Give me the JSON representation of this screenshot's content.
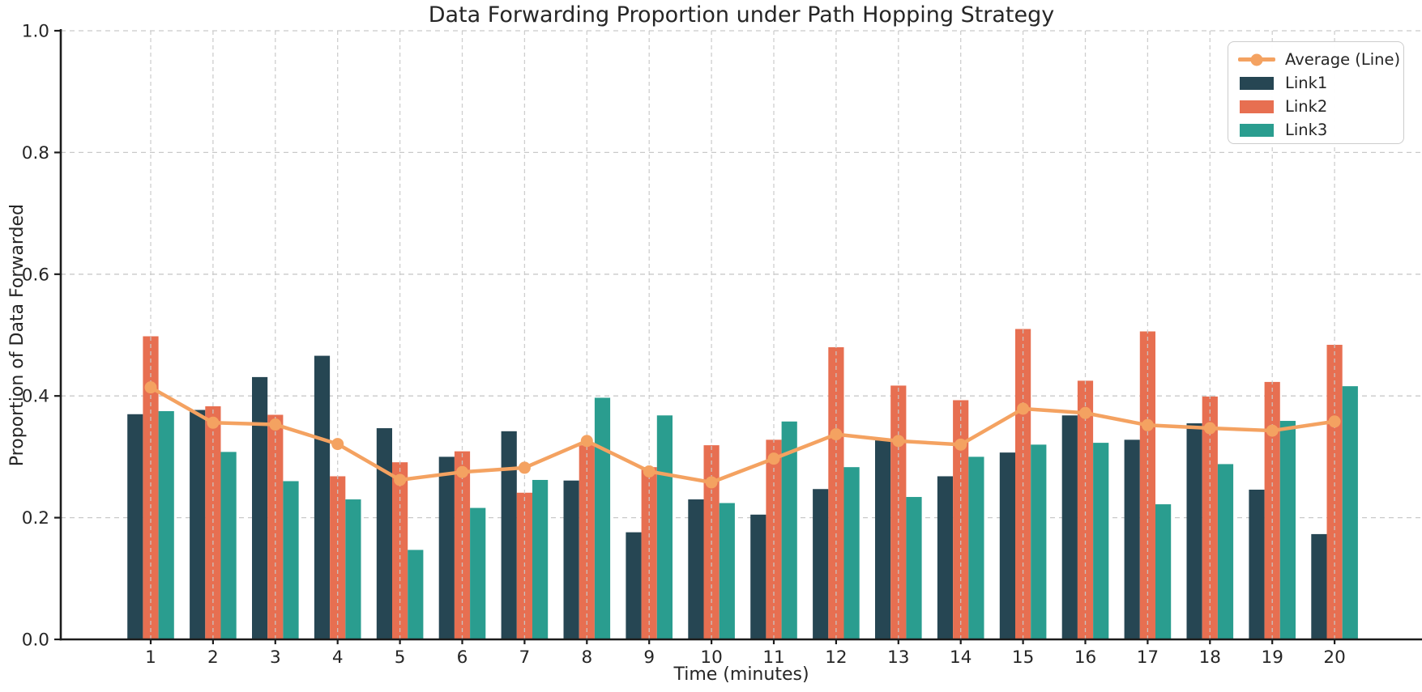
{
  "figure": {
    "title": "Data Forwarding Proportion under Path Hopping Strategy",
    "xlabel": "Time (minutes)",
    "ylabel": "Proportion of Data Forwarded"
  },
  "colors": {
    "link1": "#264653",
    "link2": "#e76f51",
    "link3": "#2a9d8f",
    "average_line": "#f4a261",
    "grid": "#c9c9c9",
    "axis": "#1c1c1c",
    "text": "#262626"
  },
  "legend": {
    "items": [
      {
        "label": "Average (Line)",
        "type": "line",
        "color": "#f4a261"
      },
      {
        "label": "Link1",
        "type": "patch",
        "color": "#264653"
      },
      {
        "label": "Link2",
        "type": "patch",
        "color": "#e76f51"
      },
      {
        "label": "Link3",
        "type": "patch",
        "color": "#2a9d8f"
      }
    ]
  },
  "chart_data": {
    "type": "bar",
    "title": "Data Forwarding Proportion under Path Hopping Strategy",
    "xlabel": "Time (minutes)",
    "ylabel": "Proportion of Data Forwarded",
    "categories": [
      "1",
      "2",
      "3",
      "4",
      "5",
      "6",
      "7",
      "8",
      "9",
      "10",
      "11",
      "12",
      "13",
      "14",
      "15",
      "16",
      "17",
      "18",
      "19",
      "20"
    ],
    "series": [
      {
        "name": "Link1",
        "type": "bar",
        "color": "#264653",
        "values": [
          0.37,
          0.377,
          0.431,
          0.466,
          0.347,
          0.3,
          0.342,
          0.261,
          0.176,
          0.23,
          0.205,
          0.247,
          0.327,
          0.268,
          0.307,
          0.368,
          0.328,
          0.355,
          0.246,
          0.173
        ]
      },
      {
        "name": "Link2",
        "type": "bar",
        "color": "#e76f51",
        "values": [
          0.498,
          0.383,
          0.369,
          0.268,
          0.291,
          0.309,
          0.241,
          0.319,
          0.283,
          0.319,
          0.328,
          0.48,
          0.417,
          0.393,
          0.51,
          0.425,
          0.506,
          0.399,
          0.423,
          0.484
        ]
      },
      {
        "name": "Link3",
        "type": "bar",
        "color": "#2a9d8f",
        "values": [
          0.375,
          0.308,
          0.26,
          0.23,
          0.147,
          0.216,
          0.262,
          0.397,
          0.368,
          0.224,
          0.358,
          0.283,
          0.234,
          0.3,
          0.32,
          0.323,
          0.222,
          0.288,
          0.359,
          0.416
        ]
      },
      {
        "name": "Average (Line)",
        "type": "line",
        "color": "#f4a261",
        "values": [
          0.414,
          0.356,
          0.353,
          0.321,
          0.262,
          0.275,
          0.282,
          0.326,
          0.276,
          0.258,
          0.297,
          0.337,
          0.326,
          0.32,
          0.379,
          0.372,
          0.352,
          0.347,
          0.343,
          0.358
        ]
      }
    ],
    "ylim": [
      0.0,
      1.0
    ],
    "yticks": [
      0.0,
      0.2,
      0.4,
      0.6,
      0.8,
      1.0
    ],
    "grid": true,
    "grid_style": "dashed",
    "legend_position": "upper right"
  }
}
